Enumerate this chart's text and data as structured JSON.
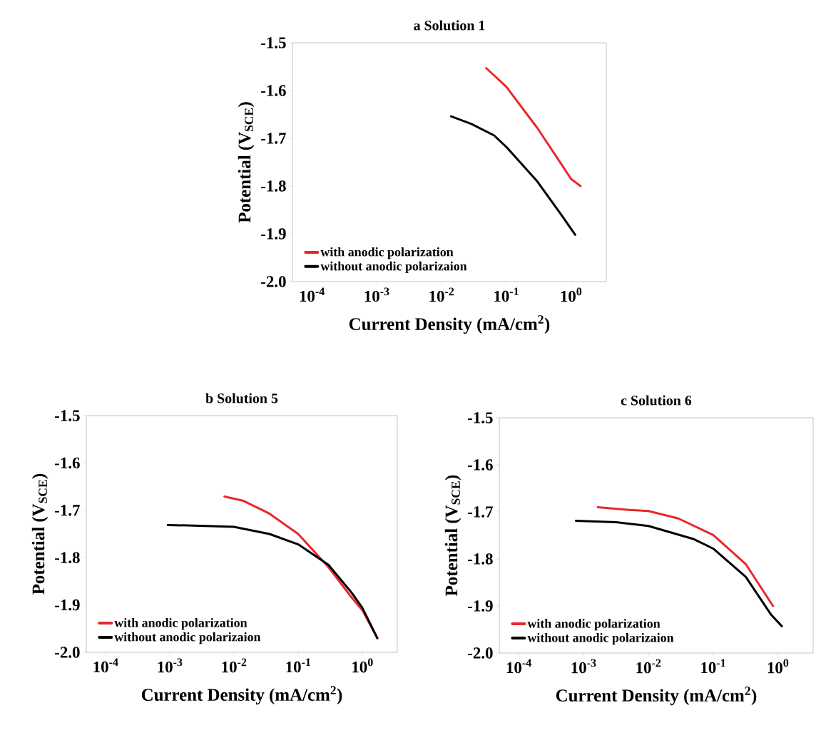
{
  "chart_data": [
    {
      "type": "line",
      "title": "a  Solution 1",
      "xlabel": "Current Density (mA/cm$^{2}$)",
      "ylabel": "Potential (V$_{SCE}$)",
      "log": "x",
      "legend": "bottom left",
      "xlim": [
        5e-05,
        3.5
      ],
      "ylim": [
        -2.0,
        -1.5
      ],
      "xticks": [
        {
          "value": 0.0001,
          "label": "10$^{-4}$"
        },
        {
          "value": 0.001,
          "label": "10$^{-3}$"
        },
        {
          "value": 0.01,
          "label": "10$^{-2}$"
        },
        {
          "value": 0.1,
          "label": "10$^{-1}$"
        },
        {
          "value": 1,
          "label": "10$^{0}$"
        }
      ],
      "yticks": [
        {
          "value": -1.5,
          "label": "-1.5"
        },
        {
          "value": -1.6,
          "label": "-1.6"
        },
        {
          "value": -1.7,
          "label": "-1.7"
        },
        {
          "value": -1.8,
          "label": "-1.8"
        },
        {
          "value": -1.9,
          "label": "-1.9"
        },
        {
          "value": -2.0,
          "label": "-2.0"
        }
      ],
      "series": [
        {
          "name": "with anodic polarization",
          "color": "#e8282b",
          "x": [
            0.049,
            0.1,
            0.3,
            0.74,
            1.0,
            1.4
          ],
          "values": [
            -1.553,
            -1.592,
            -1.678,
            -1.758,
            -1.785,
            -1.8
          ]
        },
        {
          "name": "without anodic polarizaion",
          "color": "#000000",
          "x": [
            0.014,
            0.029,
            0.065,
            0.1,
            0.3,
            0.74,
            1.16
          ],
          "values": [
            -1.654,
            -1.67,
            -1.694,
            -1.718,
            -1.79,
            -1.864,
            -1.902
          ]
        }
      ]
    },
    {
      "type": "line",
      "title": "b  Solution 5",
      "xlabel": "Current Density (mA/cm$^{2}$)",
      "ylabel": "Potential (V$_{SCE}$)",
      "log": "x",
      "legend": "bottom left",
      "xlim": [
        5e-05,
        3.5
      ],
      "ylim": [
        -2.0,
        -1.5
      ],
      "xticks": [
        {
          "value": 0.0001,
          "label": "10$^{-4}$"
        },
        {
          "value": 0.001,
          "label": "10$^{-3}$"
        },
        {
          "value": 0.01,
          "label": "10$^{-2}$"
        },
        {
          "value": 0.1,
          "label": "10$^{-1}$"
        },
        {
          "value": 1,
          "label": "10$^{0}$"
        }
      ],
      "yticks": [
        {
          "value": -1.5,
          "label": "-1.5"
        },
        {
          "value": -1.6,
          "label": "-1.6"
        },
        {
          "value": -1.7,
          "label": "-1.7"
        },
        {
          "value": -1.8,
          "label": "-1.8"
        },
        {
          "value": -1.9,
          "label": "-1.9"
        },
        {
          "value": -2.0,
          "label": "-2.0"
        }
      ],
      "series": [
        {
          "name": "with anodic polarization",
          "color": "#e8282b",
          "x": [
            0.0071,
            0.0141,
            0.0356,
            0.1,
            0.296,
            0.68,
            1.0,
            1.71
          ],
          "values": [
            -1.671,
            -1.68,
            -1.707,
            -1.75,
            -1.82,
            -1.884,
            -1.911,
            -1.97
          ]
        },
        {
          "name": "without anodic polarizaion",
          "color": "#000000",
          "x": [
            0.00093,
            0.00355,
            0.00995,
            0.0356,
            0.1,
            0.296,
            0.68,
            1.0,
            1.71
          ],
          "values": [
            -1.731,
            -1.733,
            -1.735,
            -1.75,
            -1.772,
            -1.815,
            -1.874,
            -1.906,
            -1.97
          ]
        }
      ]
    },
    {
      "type": "line",
      "title": "c  Solution 6",
      "xlabel": "Current Density (mA/cm$^{2}$)",
      "ylabel": "Potential (V$_{SCE}$)",
      "log": "x",
      "legend": "bottom left",
      "xlim": [
        5e-05,
        3.5
      ],
      "ylim": [
        -2.0,
        -1.5
      ],
      "xticks": [
        {
          "value": 0.0001,
          "label": "10$^{-4}$"
        },
        {
          "value": 0.001,
          "label": "10$^{-3}$"
        },
        {
          "value": 0.01,
          "label": "10$^{-2}$"
        },
        {
          "value": 0.1,
          "label": "10$^{-1}$"
        },
        {
          "value": 1,
          "label": "10$^{0}$"
        }
      ],
      "yticks": [
        {
          "value": -1.5,
          "label": "-1.5"
        },
        {
          "value": -1.6,
          "label": "-1.6"
        },
        {
          "value": -1.7,
          "label": "-1.7"
        },
        {
          "value": -1.8,
          "label": "-1.8"
        },
        {
          "value": -1.9,
          "label": "-1.9"
        },
        {
          "value": -2.0,
          "label": "-2.0"
        }
      ],
      "series": [
        {
          "name": "with anodic polarization",
          "color": "#e8282b",
          "x": [
            0.00166,
            0.00504,
            0.01,
            0.029,
            0.1,
            0.319,
            0.84
          ],
          "values": [
            -1.69,
            -1.696,
            -1.698,
            -1.714,
            -1.749,
            -1.811,
            -1.9
          ]
        },
        {
          "name": "without anodic polarizaion",
          "color": "#000000",
          "x": [
            0.00076,
            0.00318,
            0.01,
            0.0505,
            0.1,
            0.319,
            0.79,
            1.15
          ],
          "values": [
            -1.719,
            -1.722,
            -1.73,
            -1.758,
            -1.778,
            -1.838,
            -1.919,
            -1.943
          ]
        }
      ]
    }
  ]
}
